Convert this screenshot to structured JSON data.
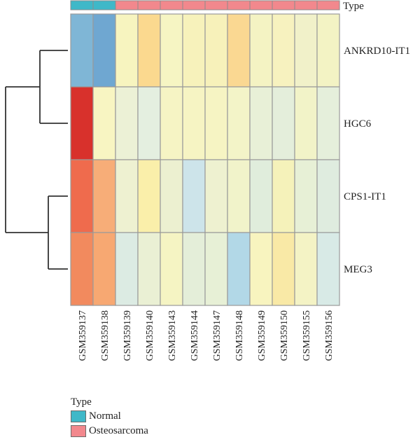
{
  "chart_data": {
    "type": "heatmap",
    "annotation_title": "Type",
    "columns": [
      "GSM359137",
      "GSM359138",
      "GSM359139",
      "GSM359140",
      "GSM359143",
      "GSM359144",
      "GSM359147",
      "GSM359148",
      "GSM359149",
      "GSM359150",
      "GSM359155",
      "GSM359156"
    ],
    "column_types": [
      "Normal",
      "Normal",
      "Osteosarcoma",
      "Osteosarcoma",
      "Osteosarcoma",
      "Osteosarcoma",
      "Osteosarcoma",
      "Osteosarcoma",
      "Osteosarcoma",
      "Osteosarcoma",
      "Osteosarcoma",
      "Osteosarcoma"
    ],
    "rows": [
      "ANKRD10-IT1",
      "HGC6",
      "CPS1-IT1",
      "MEG3"
    ],
    "row_dendrogram": "((ANKRD10-IT1,HGC6),(CPS1-IT1,MEG3))",
    "cell_colors": [
      [
        "#7fb6d6",
        "#6fa7d1",
        "#f7f4bf",
        "#fbd98f",
        "#f6f5c3",
        "#f7f2bb",
        "#f7f1ba",
        "#fad892",
        "#f4f3c3",
        "#f7f2bf",
        "#f1f1c9",
        "#f3f3c4"
      ],
      [
        "#d8312c",
        "#f8f5c2",
        "#ecf1d6",
        "#e4efe0",
        "#f6f4c4",
        "#f6f4c3",
        "#f6f4c3",
        "#f3f4c8",
        "#e8f0d7",
        "#e4eedb",
        "#f2f3c8",
        "#e5efdb"
      ],
      [
        "#ef6b4d",
        "#f7ad78",
        "#eef1d1",
        "#faefaa",
        "#ecf0d0",
        "#cde4ea",
        "#eef1d0",
        "#f1f3ca",
        "#e0eddc",
        "#f5f2ba",
        "#e7f0d6",
        "#dfecdf"
      ],
      [
        "#f28a5e",
        "#f7a872",
        "#dcebe3",
        "#eaf0d4",
        "#f5f4c3",
        "#e4eed9",
        "#e7f0d6",
        "#b2d8e7",
        "#f8f4bf",
        "#f9e9a6",
        "#f4f3c5",
        "#d8eae6"
      ]
    ],
    "legend": [
      {
        "label": "Normal",
        "color": "#3fb8c8"
      },
      {
        "label": "Osteosarcoma",
        "color": "#f2888d"
      }
    ]
  }
}
